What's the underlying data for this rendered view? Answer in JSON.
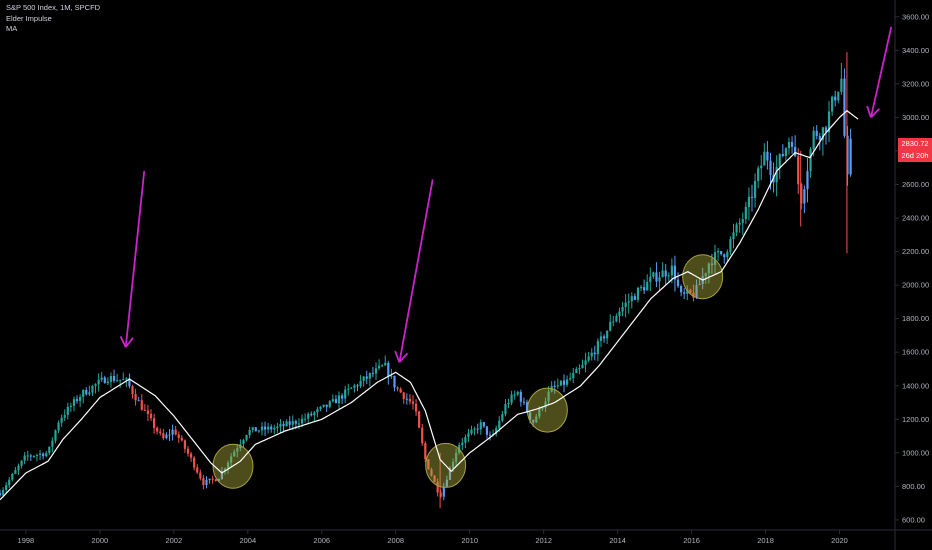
{
  "legend": {
    "symbol": "S&P 500 Index, 1M, SPCFD",
    "indicator1": "Elder Impulse",
    "indicator2": "MA"
  },
  "price_badge": {
    "last_price": "2830.72",
    "countdown": "26d 20h",
    "color": "#f23645"
  },
  "colors": {
    "background": "#000000",
    "up": "#26a69a",
    "down": "#ef5350",
    "neutral": "#5b9cf6",
    "ma": "#ffffff",
    "arrow": "#cc22cc",
    "highlight_fill": "rgba(170,170,60,0.45)",
    "highlight_stroke": "#a8a040"
  },
  "chart_data": {
    "type": "candlestick",
    "title": "S&P 500 Index, 1M, SPCFD",
    "x_ticks": [
      "1998",
      "2000",
      "2002",
      "2004",
      "2006",
      "2008",
      "2010",
      "2012",
      "2014",
      "2016",
      "2018",
      "2020"
    ],
    "y_ticks": [
      "600.00",
      "800.00",
      "1000.00",
      "1200.00",
      "1400.00",
      "1600.00",
      "1800.00",
      "2000.00",
      "2200.00",
      "2400.00",
      "2600.00",
      "2800.00",
      "3000.00",
      "3200.00",
      "3400.00",
      "3600.00"
    ],
    "xlim": [
      1997.3,
      2021.5
    ],
    "ylim": [
      540,
      3700
    ],
    "close_anchors": [
      [
        1997.3,
        760
      ],
      [
        1998.0,
        980
      ],
      [
        1998.6,
        1000
      ],
      [
        1998.9,
        1200
      ],
      [
        1999.5,
        1350
      ],
      [
        2000.2,
        1450
      ],
      [
        2000.7,
        1430
      ],
      [
        2001.2,
        1250
      ],
      [
        2001.7,
        1080
      ],
      [
        2002.0,
        1140
      ],
      [
        2002.5,
        950
      ],
      [
        2002.8,
        820
      ],
      [
        2003.2,
        850
      ],
      [
        2003.6,
        1000
      ],
      [
        2004.0,
        1130
      ],
      [
        2004.8,
        1150
      ],
      [
        2005.5,
        1200
      ],
      [
        2006.3,
        1300
      ],
      [
        2006.9,
        1400
      ],
      [
        2007.7,
        1520
      ],
      [
        2008.0,
        1390
      ],
      [
        2008.5,
        1280
      ],
      [
        2008.8,
        960
      ],
      [
        2009.2,
        740
      ],
      [
        2009.7,
        1050
      ],
      [
        2010.3,
        1170
      ],
      [
        2010.6,
        1080
      ],
      [
        2011.0,
        1300
      ],
      [
        2011.3,
        1360
      ],
      [
        2011.7,
        1180
      ],
      [
        2012.2,
        1380
      ],
      [
        2012.6,
        1420
      ],
      [
        2013.0,
        1500
      ],
      [
        2013.5,
        1650
      ],
      [
        2014.0,
        1840
      ],
      [
        2014.5,
        1950
      ],
      [
        2015.0,
        2050
      ],
      [
        2015.5,
        2100
      ],
      [
        2015.7,
        1930
      ],
      [
        2016.1,
        1950
      ],
      [
        2016.5,
        2150
      ],
      [
        2016.9,
        2200
      ],
      [
        2017.5,
        2450
      ],
      [
        2018.0,
        2800
      ],
      [
        2018.2,
        2650
      ],
      [
        2018.7,
        2900
      ],
      [
        2018.95,
        2500
      ],
      [
        2019.3,
        2900
      ],
      [
        2019.6,
        2930
      ],
      [
        2019.9,
        3150
      ],
      [
        2020.05,
        3230
      ],
      [
        2020.12,
        2950
      ],
      [
        2020.2,
        2580
      ],
      [
        2020.3,
        2830
      ]
    ],
    "ma_anchors": [
      [
        1997.3,
        720
      ],
      [
        1998.0,
        880
      ],
      [
        1998.6,
        950
      ],
      [
        1999.0,
        1080
      ],
      [
        1999.5,
        1200
      ],
      [
        2000.0,
        1330
      ],
      [
        2000.8,
        1440
      ],
      [
        2001.5,
        1340
      ],
      [
        2002.0,
        1220
      ],
      [
        2002.5,
        1080
      ],
      [
        2003.0,
        940
      ],
      [
        2003.3,
        880
      ],
      [
        2003.8,
        950
      ],
      [
        2004.2,
        1050
      ],
      [
        2005.0,
        1130
      ],
      [
        2006.0,
        1200
      ],
      [
        2006.8,
        1300
      ],
      [
        2007.5,
        1420
      ],
      [
        2008.0,
        1480
      ],
      [
        2008.4,
        1420
      ],
      [
        2008.8,
        1250
      ],
      [
        2009.2,
        960
      ],
      [
        2009.5,
        890
      ],
      [
        2010.0,
        1000
      ],
      [
        2010.6,
        1100
      ],
      [
        2011.3,
        1230
      ],
      [
        2011.8,
        1260
      ],
      [
        2012.3,
        1300
      ],
      [
        2013.0,
        1400
      ],
      [
        2013.5,
        1520
      ],
      [
        2014.2,
        1720
      ],
      [
        2014.9,
        1920
      ],
      [
        2015.5,
        2040
      ],
      [
        2015.9,
        2080
      ],
      [
        2016.3,
        2030
      ],
      [
        2016.8,
        2080
      ],
      [
        2017.3,
        2250
      ],
      [
        2017.8,
        2450
      ],
      [
        2018.3,
        2680
      ],
      [
        2018.8,
        2790
      ],
      [
        2019.2,
        2760
      ],
      [
        2019.6,
        2900
      ],
      [
        2020.0,
        3000
      ],
      [
        2020.2,
        3040
      ],
      [
        2020.5,
        2990
      ]
    ],
    "highlighted_zones": [
      {
        "x": 2003.6,
        "y": 920
      },
      {
        "x": 2009.35,
        "y": 925
      },
      {
        "x": 2012.1,
        "y": 1255
      },
      {
        "x": 2016.3,
        "y": 2050
      }
    ],
    "arrows": [
      {
        "from": [
          2001.2,
          2680
        ],
        "to": [
          2000.7,
          1630
        ]
      },
      {
        "from": [
          2009.0,
          2630
        ],
        "to": [
          2008.1,
          1540
        ]
      },
      {
        "from": [
          2021.4,
          3540
        ],
        "to": [
          2020.85,
          3000
        ]
      }
    ]
  }
}
